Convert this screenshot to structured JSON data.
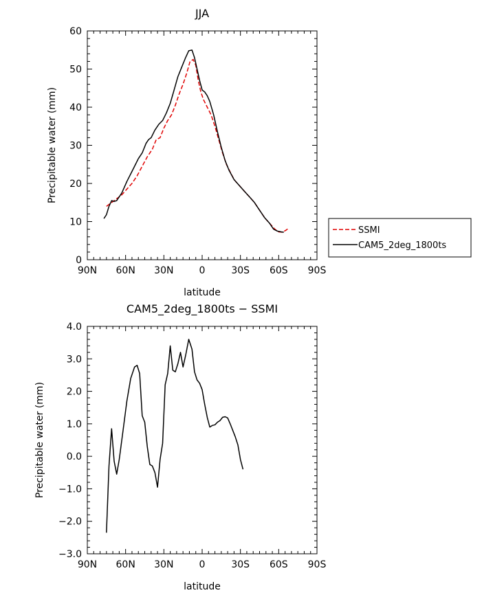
{
  "chart_data": [
    {
      "type": "line",
      "title": "JJA",
      "xlabel": "latitude",
      "ylabel": "Precipitable water (mm)",
      "xlim": [
        90,
        -90
      ],
      "ylim": [
        0,
        60
      ],
      "xticks": [
        {
          "value": 90,
          "label": "90N"
        },
        {
          "value": 60,
          "label": "60N"
        },
        {
          "value": 30,
          "label": "30N"
        },
        {
          "value": 0,
          "label": "0"
        },
        {
          "value": -30,
          "label": "30S"
        },
        {
          "value": -60,
          "label": "60S"
        },
        {
          "value": -90,
          "label": "90S"
        }
      ],
      "yticks": [
        {
          "value": 0,
          "label": "0"
        },
        {
          "value": 10,
          "label": "10"
        },
        {
          "value": 20,
          "label": "20"
        },
        {
          "value": 30,
          "label": "30"
        },
        {
          "value": 40,
          "label": "40"
        },
        {
          "value": 50,
          "label": "50"
        },
        {
          "value": 60,
          "label": "60"
        }
      ],
      "legend_position": "right",
      "series": [
        {
          "name": "SSMI",
          "color": "#e00000",
          "dash": "dashed",
          "points": [
            [
              75,
              14
            ],
            [
              71,
              15
            ],
            [
              67,
              16
            ],
            [
              63,
              17
            ],
            [
              59,
              18.5
            ],
            [
              55,
              20
            ],
            [
              51,
              22
            ],
            [
              47,
              24.5
            ],
            [
              43,
              27
            ],
            [
              39,
              29
            ],
            [
              36,
              31.5
            ],
            [
              33,
              32
            ],
            [
              30,
              34.5
            ],
            [
              27,
              36.5
            ],
            [
              24,
              38
            ],
            [
              21,
              40.5
            ],
            [
              18,
              43.5
            ],
            [
              15,
              46
            ],
            [
              12,
              49
            ],
            [
              9.5,
              52
            ],
            [
              7,
              52.5
            ],
            [
              5,
              51
            ],
            [
              3,
              47
            ],
            [
              1,
              44
            ],
            [
              -1,
              42
            ],
            [
              -4,
              40
            ],
            [
              -7,
              38
            ],
            [
              -10,
              35
            ],
            [
              -13,
              31.5
            ],
            [
              -16,
              28
            ],
            [
              -19,
              25
            ],
            [
              -22,
              23
            ],
            [
              -25,
              21
            ],
            [
              -29,
              19.5
            ],
            [
              -33,
              18
            ],
            [
              -37,
              16.5
            ],
            [
              -41,
              15
            ],
            [
              -45,
              13
            ],
            [
              -49,
              11
            ],
            [
              -53,
              9.5
            ],
            [
              -57,
              8
            ],
            [
              -60,
              7.3
            ],
            [
              -63,
              7.2
            ],
            [
              -66,
              7.8
            ],
            [
              -68,
              8.4
            ]
          ]
        },
        {
          "name": "CAM5_2deg_1800ts",
          "color": "#000000",
          "dash": "solid",
          "points": [
            [
              77,
              10.8
            ],
            [
              75,
              11.8
            ],
            [
              73,
              14
            ],
            [
              71,
              15.5
            ],
            [
              69,
              15.3
            ],
            [
              67,
              15.5
            ],
            [
              65,
              16.5
            ],
            [
              63,
              17.5
            ],
            [
              61,
              19
            ],
            [
              59,
              20.5
            ],
            [
              56,
              22.5
            ],
            [
              53,
              24.5
            ],
            [
              50,
              26.5
            ],
            [
              47,
              28
            ],
            [
              44,
              30.5
            ],
            [
              42,
              31.5
            ],
            [
              40,
              32
            ],
            [
              37,
              34
            ],
            [
              34,
              35.5
            ],
            [
              31,
              36.5
            ],
            [
              28,
              38.5
            ],
            [
              25,
              41
            ],
            [
              22,
              44.5
            ],
            [
              19,
              48
            ],
            [
              16,
              50.5
            ],
            [
              13,
              53
            ],
            [
              10.5,
              54.8
            ],
            [
              8,
              55
            ],
            [
              6,
              53
            ],
            [
              4,
              50
            ],
            [
              2,
              47
            ],
            [
              0,
              44.5
            ],
            [
              -2,
              44
            ],
            [
              -4,
              43
            ],
            [
              -6,
              41.5
            ],
            [
              -9,
              38
            ],
            [
              -12,
              33.5
            ],
            [
              -15,
              29.5
            ],
            [
              -18,
              26
            ],
            [
              -21,
              23.5
            ],
            [
              -25,
              21
            ],
            [
              -29,
              19.5
            ],
            [
              -33,
              18
            ],
            [
              -37,
              16.5
            ],
            [
              -41,
              15
            ],
            [
              -45,
              13
            ],
            [
              -49,
              11
            ],
            [
              -53,
              9.5
            ],
            [
              -56,
              8
            ],
            [
              -59,
              7.5
            ],
            [
              -62,
              7.3
            ],
            [
              -64,
              7.2
            ]
          ]
        }
      ]
    },
    {
      "type": "line",
      "title": "CAM5_2deg_1800ts − SSMI",
      "xlabel": "latitude",
      "ylabel": "Precipitable water (mm)",
      "xlim": [
        90,
        -90
      ],
      "ylim": [
        -3,
        4
      ],
      "xticks": [
        {
          "value": 90,
          "label": "90N"
        },
        {
          "value": 60,
          "label": "60N"
        },
        {
          "value": 30,
          "label": "30N"
        },
        {
          "value": 0,
          "label": "0"
        },
        {
          "value": -30,
          "label": "30S"
        },
        {
          "value": -60,
          "label": "60S"
        },
        {
          "value": -90,
          "label": "90S"
        }
      ],
      "yticks": [
        {
          "value": -3,
          "label": "−3.0"
        },
        {
          "value": -2,
          "label": "−2.0"
        },
        {
          "value": -1,
          "label": "−1.0"
        },
        {
          "value": 0,
          "label": "0.0"
        },
        {
          "value": 1,
          "label": "1.0"
        },
        {
          "value": 2,
          "label": "2.0"
        },
        {
          "value": 3,
          "label": "3.0"
        },
        {
          "value": 4,
          "label": "4.0"
        }
      ],
      "series": [
        {
          "name": "CAM5_2deg_1800ts − SSMI",
          "color": "#000000",
          "dash": "solid",
          "points": [
            [
              75,
              -2.35
            ],
            [
              73,
              -0.3
            ],
            [
              71,
              0.85
            ],
            [
              69,
              -0.15
            ],
            [
              67,
              -0.55
            ],
            [
              65,
              -0.1
            ],
            [
              62,
              0.8
            ],
            [
              59,
              1.7
            ],
            [
              56,
              2.4
            ],
            [
              53,
              2.75
            ],
            [
              51,
              2.8
            ],
            [
              49,
              2.55
            ],
            [
              47,
              1.25
            ],
            [
              45,
              1.05
            ],
            [
              43,
              0.3
            ],
            [
              41,
              -0.25
            ],
            [
              39,
              -0.3
            ],
            [
              37,
              -0.5
            ],
            [
              35,
              -0.95
            ],
            [
              33,
              -0.1
            ],
            [
              31,
              0.4
            ],
            [
              29,
              2.2
            ],
            [
              27,
              2.55
            ],
            [
              25,
              3.4
            ],
            [
              23,
              2.65
            ],
            [
              21,
              2.6
            ],
            [
              19,
              2.85
            ],
            [
              17,
              3.2
            ],
            [
              15,
              2.75
            ],
            [
              13,
              3.1
            ],
            [
              10.5,
              3.6
            ],
            [
              8,
              3.3
            ],
            [
              6,
              2.6
            ],
            [
              4,
              2.35
            ],
            [
              2,
              2.25
            ],
            [
              0,
              2.05
            ],
            [
              -2,
              1.6
            ],
            [
              -4,
              1.2
            ],
            [
              -6,
              0.9
            ],
            [
              -8,
              0.95
            ],
            [
              -10,
              0.97
            ],
            [
              -12,
              1.05
            ],
            [
              -14,
              1.1
            ],
            [
              -16,
              1.2
            ],
            [
              -18,
              1.22
            ],
            [
              -20,
              1.18
            ],
            [
              -22,
              1.0
            ],
            [
              -24,
              0.8
            ],
            [
              -26,
              0.6
            ],
            [
              -28,
              0.35
            ],
            [
              -30,
              -0.1
            ],
            [
              -32,
              -0.4
            ]
          ]
        }
      ]
    }
  ],
  "legend": {
    "items": [
      {
        "label": "SSMI",
        "color": "#e00000",
        "dash": "dashed"
      },
      {
        "label": "CAM5_2deg_1800ts",
        "color": "#000000",
        "dash": "solid"
      }
    ]
  }
}
